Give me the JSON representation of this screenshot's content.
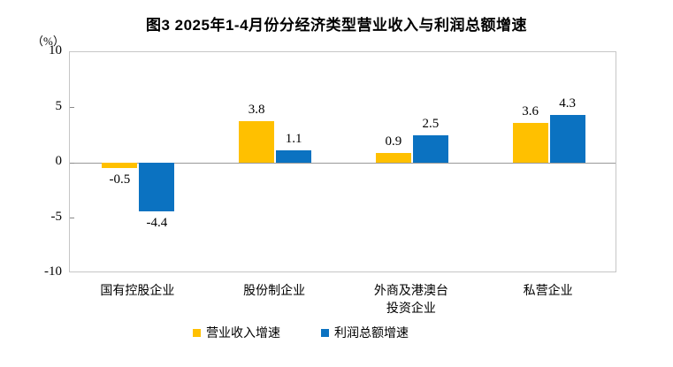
{
  "chart_data": {
    "type": "bar",
    "title": "图3 2025年1-4月份分经济类型营业收入与利润总额增速",
    "ylabel": "（%）",
    "xlabel": "",
    "ylim": [
      -10,
      10
    ],
    "yticks": [
      10,
      5,
      0,
      -5,
      -10
    ],
    "interior_tick_values": [
      5,
      0,
      -5
    ],
    "grid": "zero-baseline only, boxed plot area",
    "legend_position": "bottom-center",
    "categories": [
      "国有控股企业",
      "股份制企业",
      "外商及港澳台\n投资企业",
      "私营企业"
    ],
    "series": [
      {
        "name": "营业收入增速",
        "color": "#FFC000",
        "values": [
          -0.5,
          3.8,
          0.9,
          3.6
        ]
      },
      {
        "name": "利润总额增速",
        "color": "#0B72C1",
        "values": [
          -4.4,
          1.1,
          2.5,
          4.3
        ]
      }
    ],
    "colors": {
      "plot_border": "#c6c6c6",
      "zero_line": "#999999",
      "text": "#000000"
    }
  }
}
